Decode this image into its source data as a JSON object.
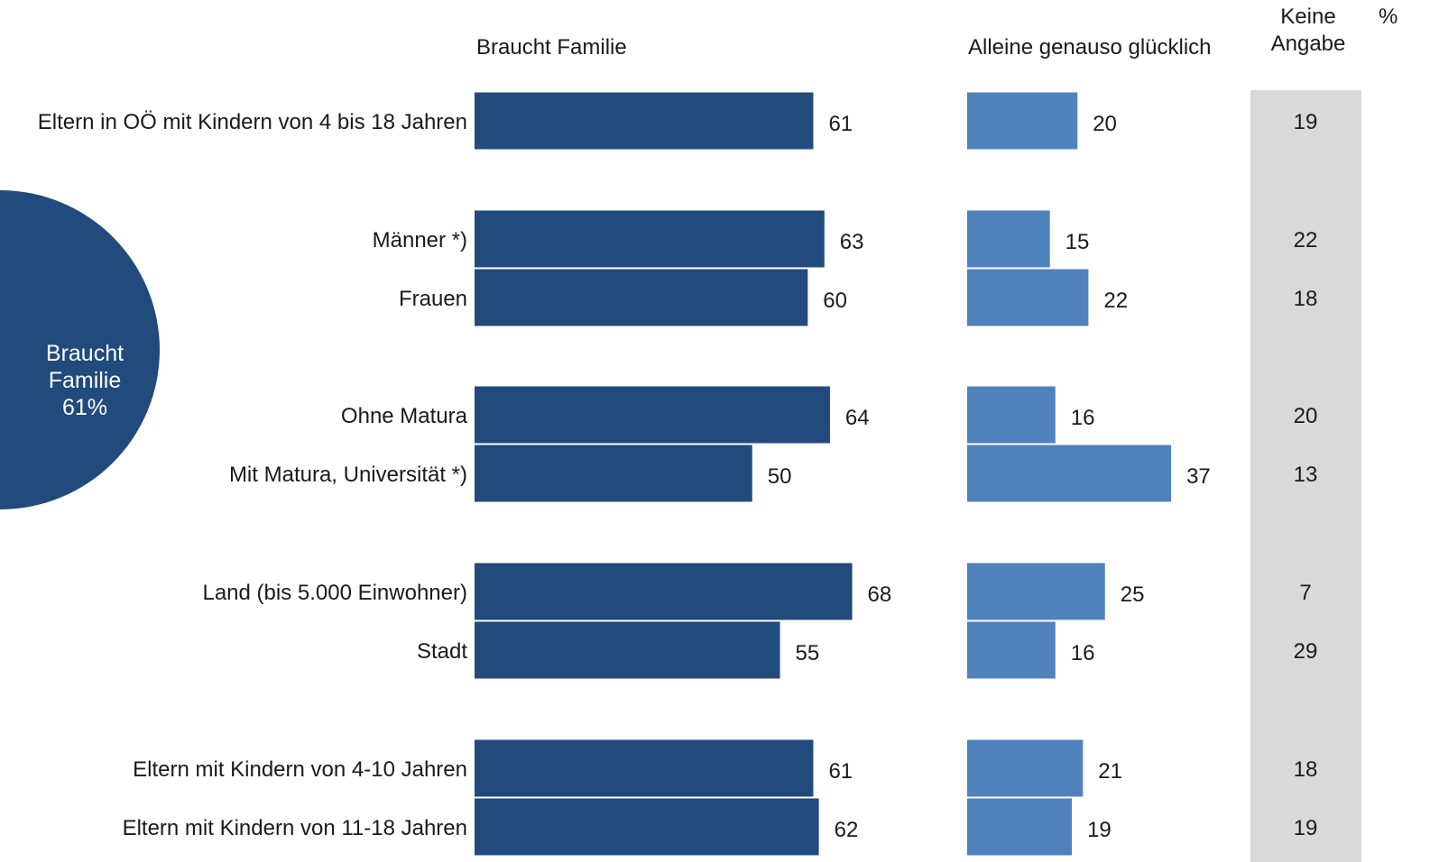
{
  "headers": {
    "col1": "Braucht Familie",
    "col2": "Alleine genauso glücklich",
    "col3": "Keine Angabe",
    "percent": "%"
  },
  "circle": {
    "line1": "Braucht",
    "line2": "Familie",
    "line3": "61%"
  },
  "colors": {
    "braucht": "#214a7d",
    "alleine": "#4f81bd",
    "keine_bg": "#d9d9d9",
    "circle": "#214a7d"
  },
  "chart_data": {
    "type": "bar",
    "orientation": "horizontal",
    "categories": [
      "Eltern in OÖ mit Kindern von 4 bis 18 Jahren",
      "Männer *)",
      "Frauen",
      "Ohne Matura",
      "Mit Matura, Universität *)",
      "Land (bis 5.000 Einwohner)",
      "Stadt",
      "Eltern mit Kindern von 4-10 Jahren",
      "Eltern mit Kindern von 11-18 Jahren"
    ],
    "series": [
      {
        "name": "Braucht Familie",
        "values": [
          61,
          63,
          60,
          64,
          50,
          68,
          55,
          61,
          62
        ]
      },
      {
        "name": "Alleine genauso glücklich",
        "values": [
          20,
          15,
          22,
          16,
          37,
          25,
          16,
          21,
          19
        ]
      },
      {
        "name": "Keine Angabe",
        "values": [
          19,
          22,
          18,
          20,
          13,
          7,
          29,
          18,
          19
        ]
      }
    ],
    "unit": "%"
  }
}
